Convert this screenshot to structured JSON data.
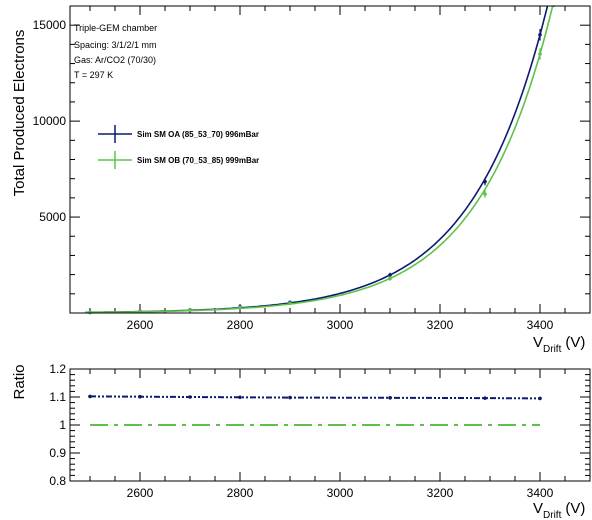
{
  "chart_data": [
    {
      "type": "scatter",
      "ylabel": "Total Produced Electrons",
      "xlabel_main": "V",
      "xlabel_sub": "Drift",
      "xlabel_unit": "(V)",
      "xlim": [
        2460,
        3500
      ],
      "ylim": [
        0,
        16000
      ],
      "x_ticks": [
        2600,
        2800,
        3000,
        3200,
        3400
      ],
      "y_tick_labels": [
        5000,
        10000,
        15000
      ],
      "annotation": [
        "Triple-GEM chamber",
        "Spacing:  3/1/2/1  mm",
        "Gas: Ar/CO2 (70/30)",
        "T = 297 K"
      ],
      "legend_position": "upper-left",
      "fit_lines": true,
      "series": [
        {
          "name": "Sim SM OA (85_53_70) 996mBar",
          "color": "#0b1a6e",
          "x": [
            2500,
            2600,
            2700,
            2800,
            2900,
            3100,
            3290,
            3400
          ],
          "y": [
            30,
            80,
            170,
            320,
            560,
            1980,
            6850,
            14500
          ],
          "yerr": [
            10,
            20,
            30,
            40,
            60,
            120,
            200,
            300
          ]
        },
        {
          "name": "Sim SM OB (70_53_85)  999mBar",
          "color": "#5ec24a",
          "x": [
            2500,
            2600,
            2700,
            2800,
            2900,
            3100,
            3290,
            3400
          ],
          "y": [
            25,
            70,
            160,
            290,
            510,
            1800,
            6200,
            13500
          ],
          "yerr": [
            10,
            20,
            30,
            40,
            60,
            120,
            200,
            300
          ]
        }
      ]
    },
    {
      "type": "line",
      "ylabel": "Ratio",
      "xlabel_main": "V",
      "xlabel_sub": "Drift",
      "xlabel_unit": "(V)",
      "xlim": [
        2460,
        3500
      ],
      "ylim": [
        0.8,
        1.2
      ],
      "x_ticks": [
        2600,
        2800,
        3000,
        3200,
        3400
      ],
      "y_tick_labels": [
        "0.8",
        "0.9",
        "1",
        "1.1",
        "1.2"
      ],
      "series": [
        {
          "color": "#0b1a6e",
          "x": [
            2500,
            2600,
            2700,
            2800,
            2900,
            3100,
            3290,
            3400
          ],
          "y": [
            1.102,
            1.101,
            1.1,
            1.099,
            1.098,
            1.097,
            1.096,
            1.095
          ]
        },
        {
          "color": "#5ec24a",
          "x": [
            2500,
            3400
          ],
          "y": [
            1.0,
            1.0
          ]
        }
      ]
    }
  ]
}
